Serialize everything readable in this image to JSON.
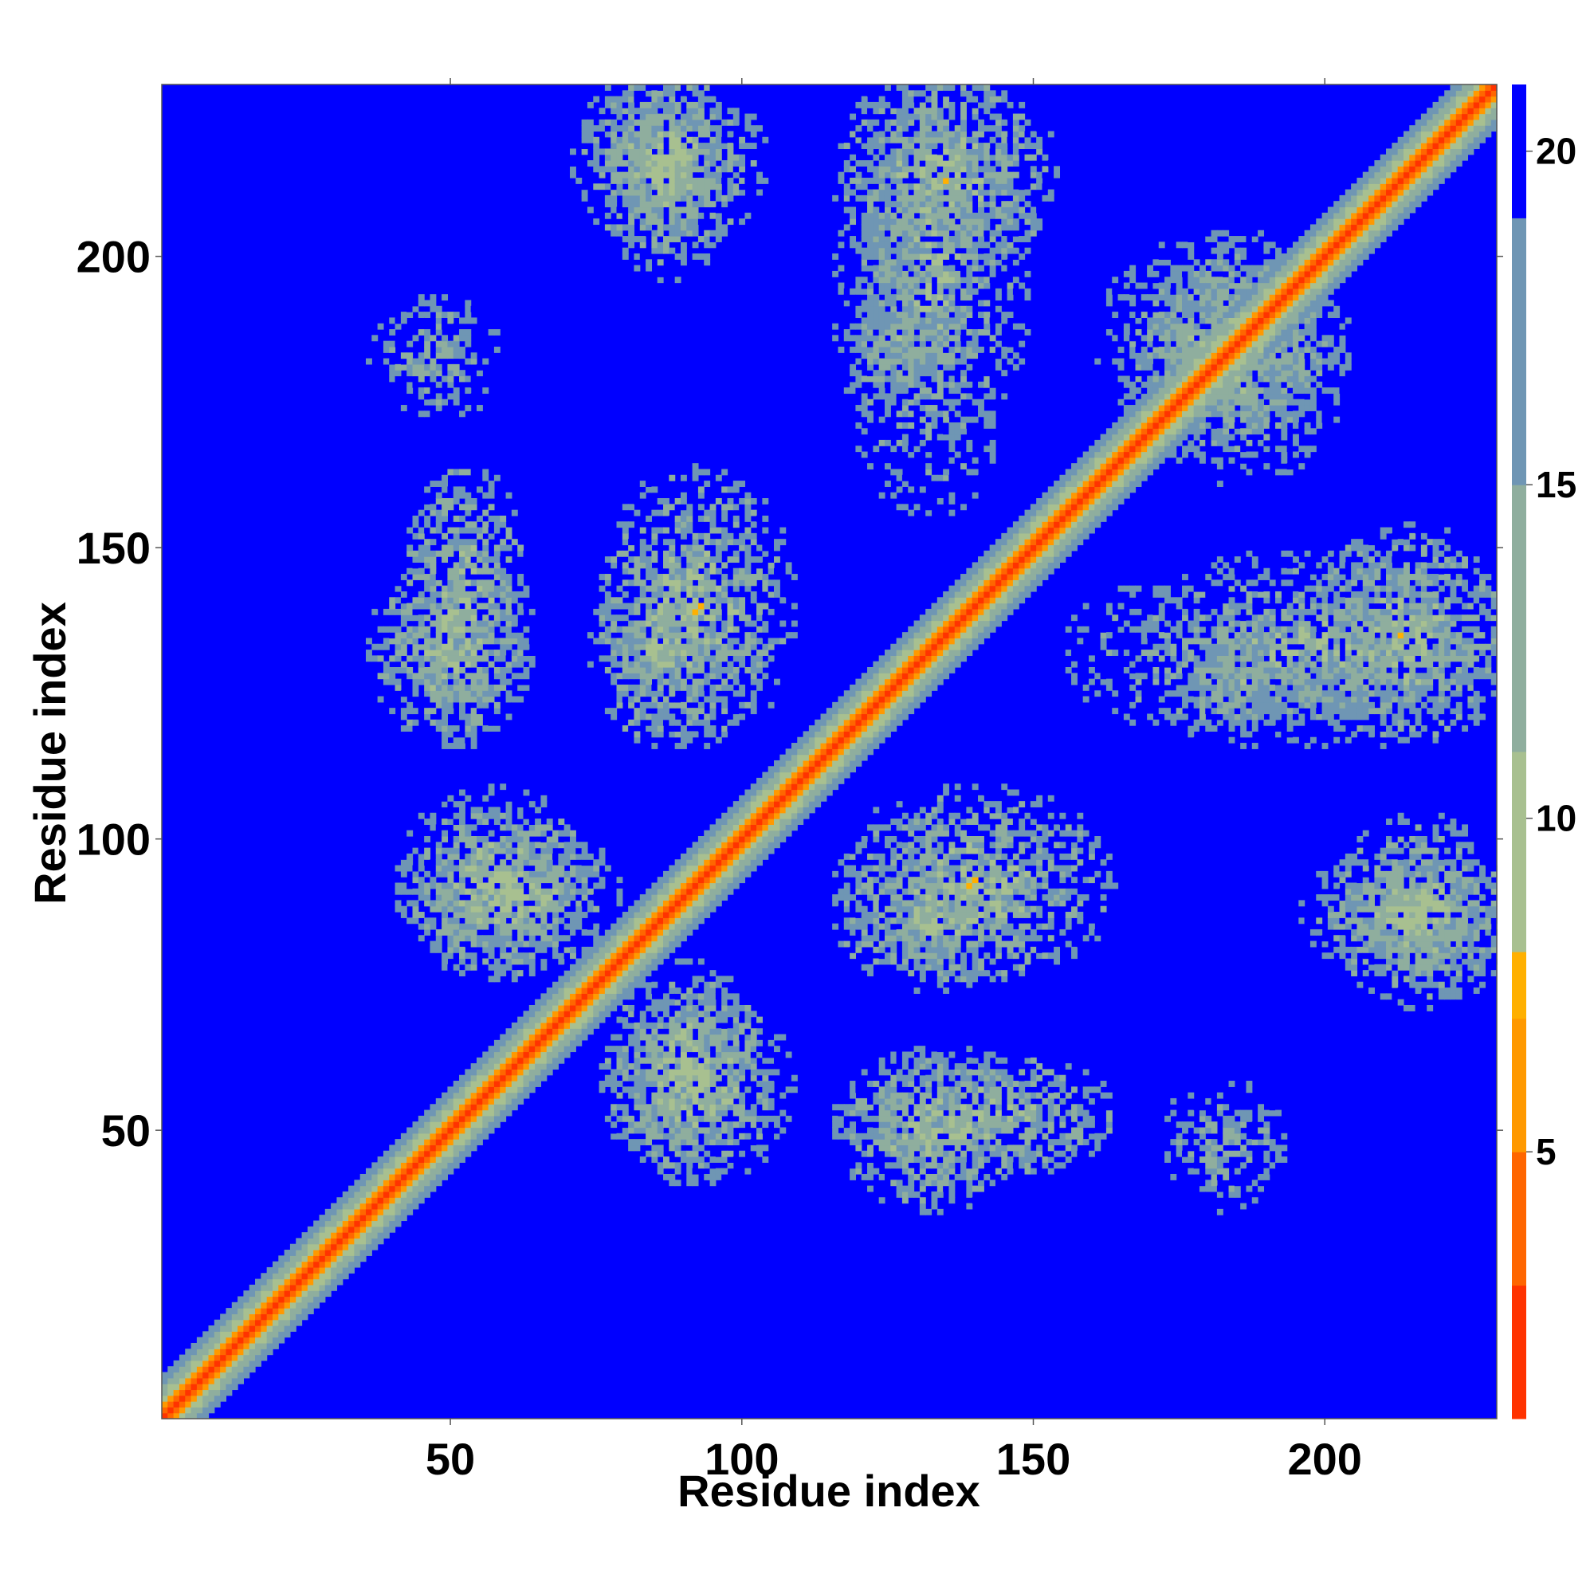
{
  "chart_data": {
    "type": "heatmap",
    "title": "",
    "xlabel": "Residue index",
    "ylabel": "Residue index",
    "x_range": [
      1,
      229
    ],
    "y_range": [
      1,
      229
    ],
    "x_ticks": [
      50,
      100,
      150,
      200
    ],
    "y_ticks": [
      50,
      100,
      150,
      200
    ],
    "colorbar": {
      "range": [
        1,
        21
      ],
      "ticks": [
        5,
        10,
        15,
        20
      ],
      "colors": [
        "#ff0000",
        "#ff3300",
        "#ff6600",
        "#ff9900",
        "#ffb000",
        "#a8c090",
        "#8fae9e",
        "#6f96b4",
        "#0000ff"
      ],
      "stops": [
        1,
        3,
        5,
        7,
        8,
        11,
        15,
        19,
        21
      ]
    },
    "background_color": "#0000ff",
    "diagonal_band": {
      "center_value": 1,
      "width_residues": 7
    },
    "contact_blocks": [
      {
        "x": [
          45,
          60
        ],
        "y": [
          120,
          160
        ],
        "value": 11
      },
      {
        "x": [
          78,
          95
        ],
        "y": [
          120,
          145
        ],
        "value": 11
      },
      {
        "x": [
          120,
          145
        ],
        "y": [
          40,
          60
        ],
        "value": 11
      },
      {
        "x": [
          120,
          145
        ],
        "y": [
          160,
          230
        ],
        "value": 12
      },
      {
        "x": [
          170,
          200
        ],
        "y": [
          165,
          200
        ],
        "value": 12
      },
      {
        "x": [
          200,
          228
        ],
        "y": [
          120,
          150
        ],
        "value": 11
      },
      {
        "x": [
          205,
          228
        ],
        "y": [
          75,
          100
        ],
        "value": 11
      },
      {
        "x": [
          80,
          100
        ],
        "y": [
          45,
          75
        ],
        "value": 11
      },
      {
        "x": [
          45,
          70
        ],
        "y": [
          80,
          105
        ],
        "value": 11
      },
      {
        "x": [
          120,
          160
        ],
        "y": [
          80,
          105
        ],
        "value": 11
      },
      {
        "x": [
          80,
          95
        ],
        "y": [
          200,
          230
        ],
        "value": 11
      },
      {
        "x": [
          40,
          55
        ],
        "y": [
          175,
          190
        ],
        "value": 13
      },
      {
        "x": [
          175,
          195
        ],
        "y": [
          120,
          135
        ],
        "value": 13
      }
    ]
  }
}
